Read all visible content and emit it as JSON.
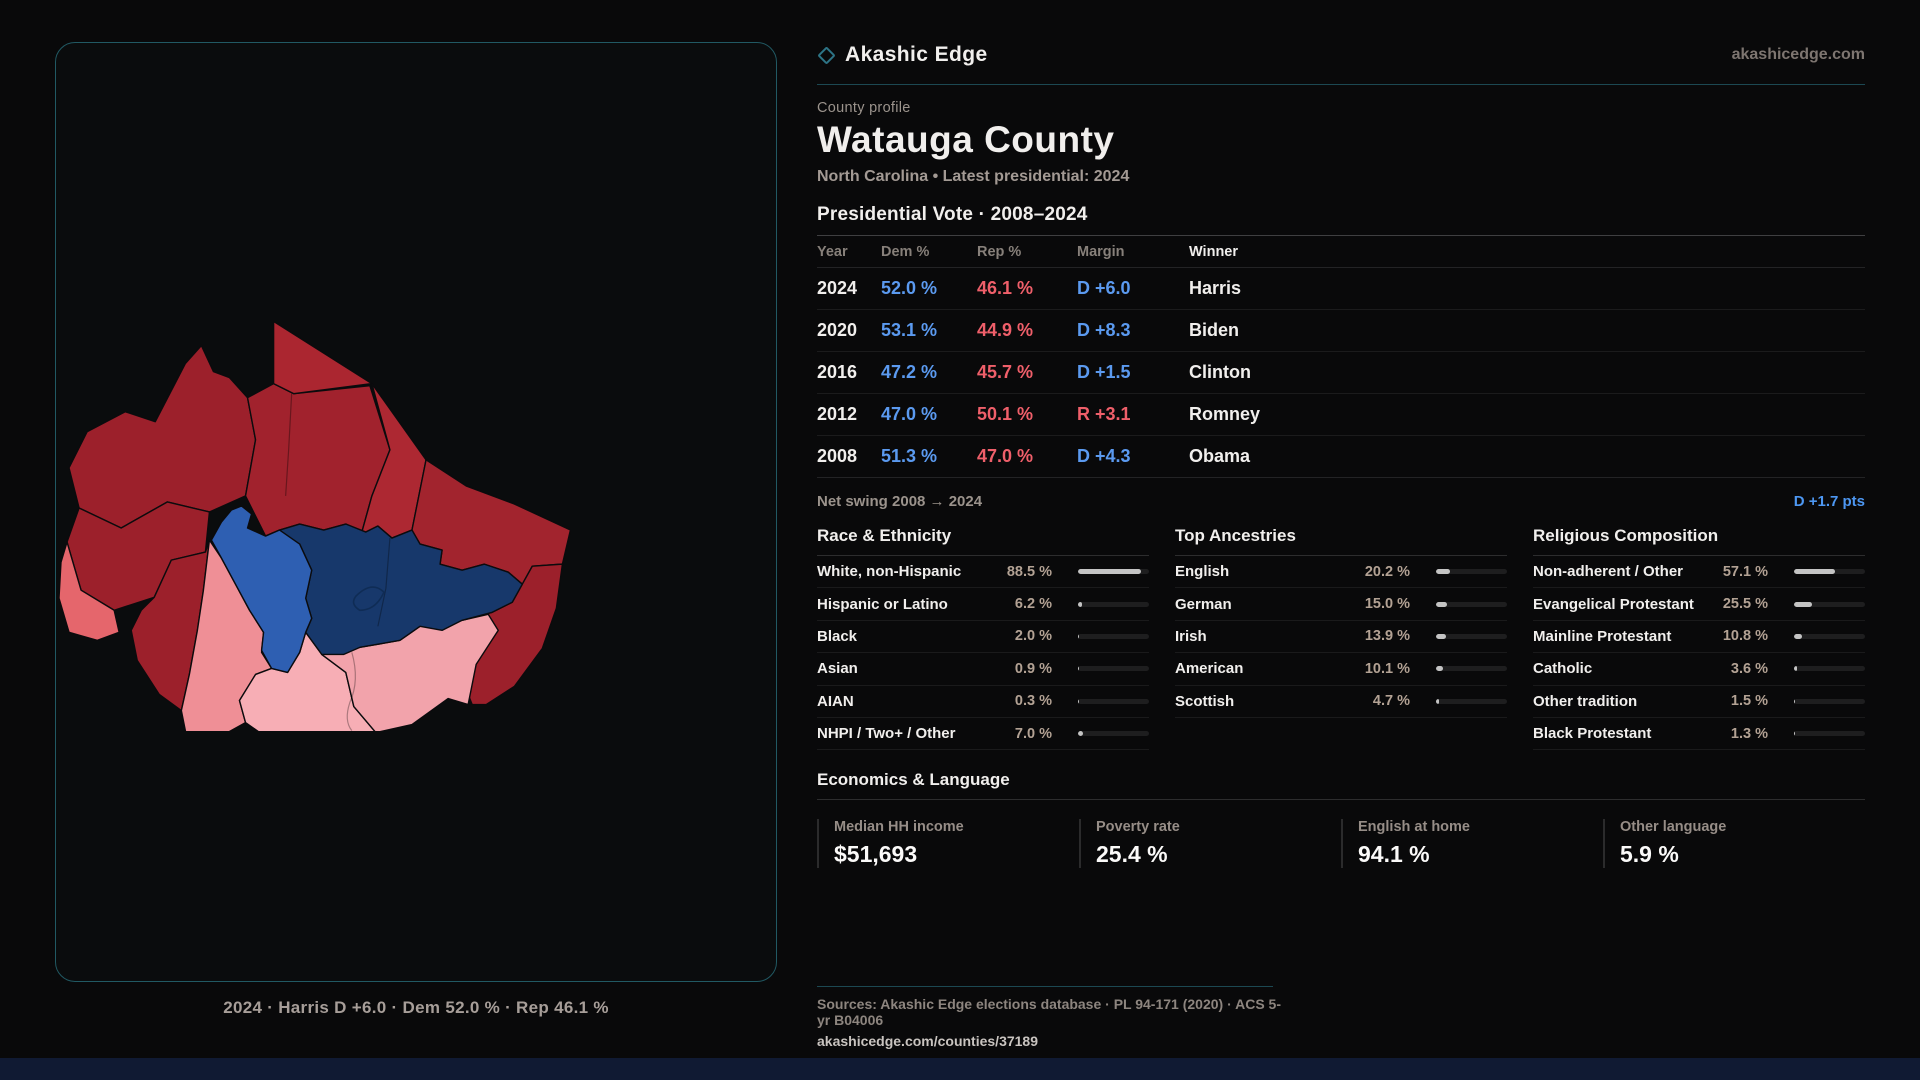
{
  "brand": {
    "name": "Akashic Edge",
    "domain": "akashicedge.com",
    "icon": "diamond-icon"
  },
  "profile": {
    "kicker": "County profile",
    "title": "Watauga County",
    "subtitle": "North Carolina • Latest presidential: 2024"
  },
  "vote_table": {
    "title": "Presidential Vote · 2008–2024",
    "columns": [
      "Year",
      "Dem %",
      "Rep %",
      "Margin",
      "Winner"
    ],
    "rows": [
      {
        "year": "2024",
        "dem": "52.0 %",
        "rep": "46.1 %",
        "margin": "D +6.0",
        "party": "D",
        "winner": "Harris"
      },
      {
        "year": "2020",
        "dem": "53.1 %",
        "rep": "44.9 %",
        "margin": "D +8.3",
        "party": "D",
        "winner": "Biden"
      },
      {
        "year": "2016",
        "dem": "47.2 %",
        "rep": "45.7 %",
        "margin": "D +1.5",
        "party": "D",
        "winner": "Clinton"
      },
      {
        "year": "2012",
        "dem": "47.0 %",
        "rep": "50.1 %",
        "margin": "R +3.1",
        "party": "R",
        "winner": "Romney"
      },
      {
        "year": "2008",
        "dem": "51.3 %",
        "rep": "47.0 %",
        "margin": "D +4.3",
        "party": "D",
        "winner": "Obama"
      }
    ]
  },
  "net_swing": {
    "label": "Net swing 2008 → 2024",
    "value": "D +1.7 pts"
  },
  "sections": {
    "race": {
      "title": "Race & Ethnicity",
      "rows": [
        {
          "label": "White, non-Hispanic",
          "value": "88.5 %",
          "pct": 88.5
        },
        {
          "label": "Hispanic or Latino",
          "value": "6.2 %",
          "pct": 6.2
        },
        {
          "label": "Black",
          "value": "2.0 %",
          "pct": 2.0
        },
        {
          "label": "Asian",
          "value": "0.9 %",
          "pct": 0.9
        },
        {
          "label": "AIAN",
          "value": "0.3 %",
          "pct": 0.3
        },
        {
          "label": "NHPI / Two+ / Other",
          "value": "7.0 %",
          "pct": 7.0
        }
      ]
    },
    "ancestry": {
      "title": "Top Ancestries",
      "rows": [
        {
          "label": "English",
          "value": "20.2 %",
          "pct": 20.2
        },
        {
          "label": "German",
          "value": "15.0 %",
          "pct": 15.0
        },
        {
          "label": "Irish",
          "value": "13.9 %",
          "pct": 13.9
        },
        {
          "label": "American",
          "value": "10.1 %",
          "pct": 10.1
        },
        {
          "label": "Scottish",
          "value": "4.7 %",
          "pct": 4.7
        }
      ]
    },
    "religion": {
      "title": "Religious Composition",
      "rows": [
        {
          "label": "Non-adherent / Other",
          "value": "57.1 %",
          "pct": 57.1
        },
        {
          "label": "Evangelical Protestant",
          "value": "25.5 %",
          "pct": 25.5
        },
        {
          "label": "Mainline Protestant",
          "value": "10.8 %",
          "pct": 10.8
        },
        {
          "label": "Catholic",
          "value": "3.6 %",
          "pct": 3.6
        },
        {
          "label": "Other tradition",
          "value": "1.5 %",
          "pct": 1.5
        },
        {
          "label": "Black Protestant",
          "value": "1.3 %",
          "pct": 1.3
        }
      ]
    }
  },
  "economics": {
    "title": "Economics & Language",
    "stats": [
      {
        "label": "Median HH income",
        "value": "$51,693"
      },
      {
        "label": "Poverty rate",
        "value": "25.4 %"
      },
      {
        "label": "English at home",
        "value": "94.1 %"
      },
      {
        "label": "Other language",
        "value": "5.9 %"
      }
    ]
  },
  "map": {
    "caption": "2024 · Harris D +6.0 · Dem 52.0 % · Rep 46.1 %"
  },
  "footer": {
    "sources": "Sources: Akashic Edge elections database · PL 94-171 (2020) · ACS 5-yr B04006",
    "permalink": "akashicedge.com/counties/37189"
  },
  "colors": {
    "accent_teal": "#1c4852",
    "dem_blue": "#5b9af0",
    "rep_red": "#ef5f6a",
    "value_tan": "#b3a294"
  }
}
